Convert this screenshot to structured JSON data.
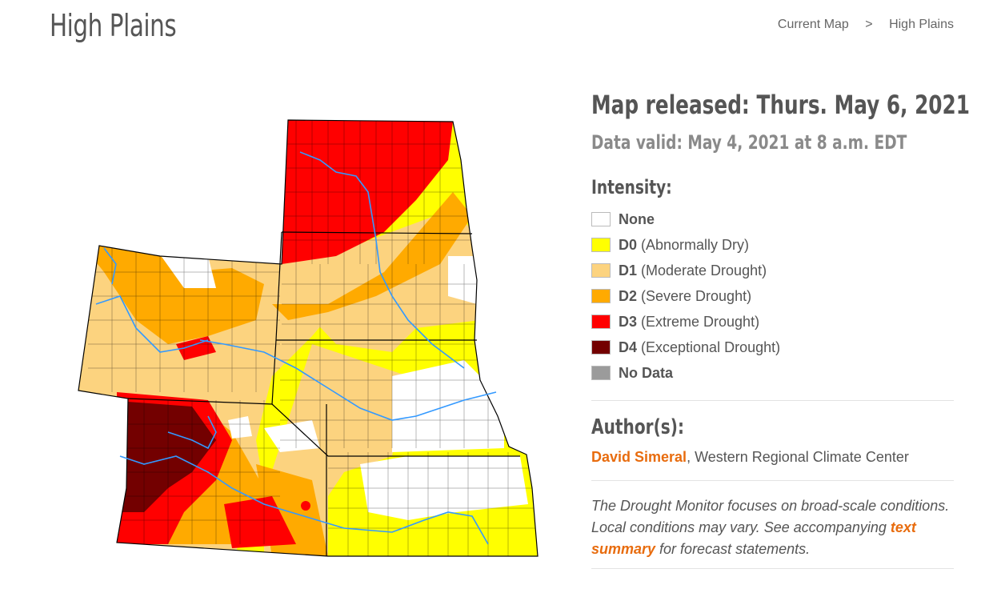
{
  "page": {
    "title": "High Plains"
  },
  "breadcrumb": {
    "home": "Current Map",
    "separator": ">",
    "current": "High Plains"
  },
  "info": {
    "released": "Map released: Thurs. May 6, 2021",
    "valid": "Data valid: May 4, 2021 at 8 a.m. EDT",
    "intensity_heading": "Intensity:"
  },
  "legend": [
    {
      "code": "None",
      "label": "",
      "color": "#ffffff"
    },
    {
      "code": "D0",
      "label": "(Abnormally Dry)",
      "color": "#ffff00"
    },
    {
      "code": "D1",
      "label": "(Moderate Drought)",
      "color": "#fcd37f"
    },
    {
      "code": "D2",
      "label": "(Severe Drought)",
      "color": "#ffaa00"
    },
    {
      "code": "D3",
      "label": "(Extreme Drought)",
      "color": "#ff0000"
    },
    {
      "code": "D4",
      "label": "(Exceptional Drought)",
      "color": "#730000"
    },
    {
      "code": "No Data",
      "label": "",
      "color": "#9b9b9b"
    }
  ],
  "authors": {
    "heading": "Author(s):",
    "name": "David Simeral",
    "affiliation": ", Western Regional Climate Center"
  },
  "note": {
    "text_before": "The Drought Monitor focuses on broad-scale conditions. Local conditions may vary. See accompanying ",
    "link": "text summary",
    "text_after": " for forecast statements."
  },
  "colors": {
    "accent": "#e86c0e",
    "river": "#3399ff"
  }
}
